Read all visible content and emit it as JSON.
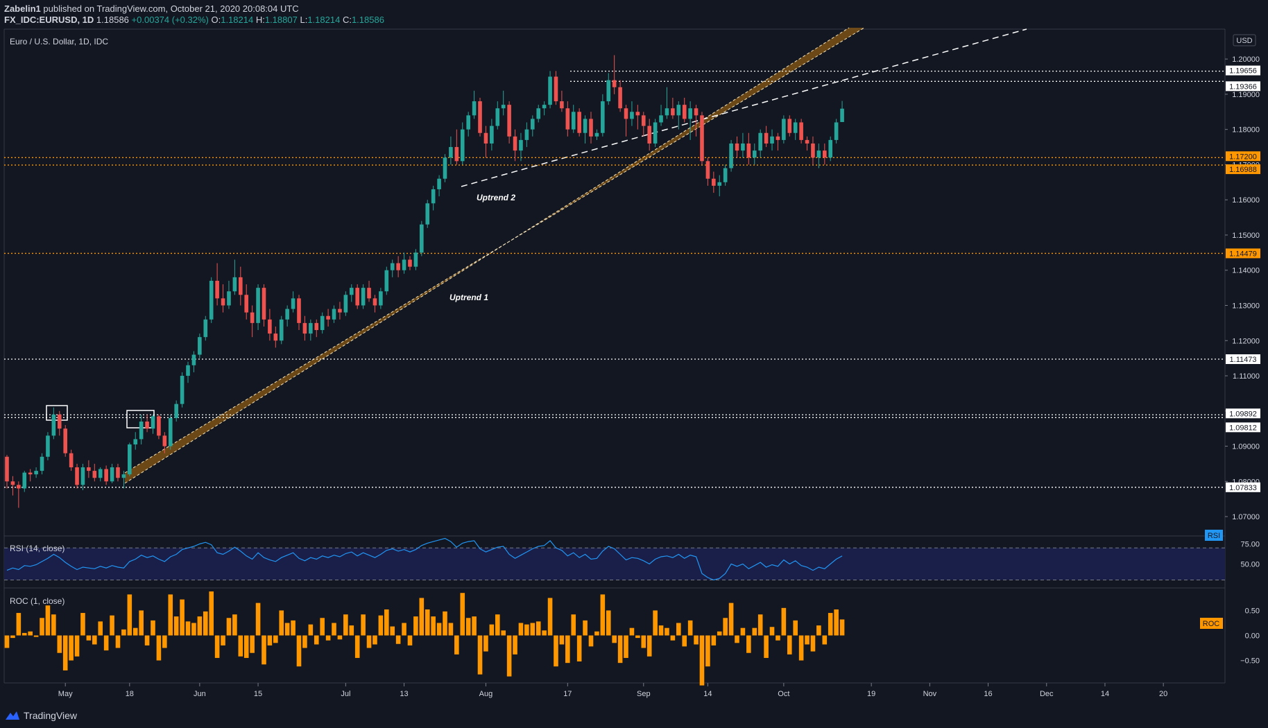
{
  "header": {
    "publisher": "Zabelin1",
    "published_text": "published on TradingView.com, October 21, 2020 20:08:04 UTC",
    "symbol": "FX_IDC:EURUSD, 1D",
    "last": "1.18586",
    "change": "+0.00374 (+0.32%)",
    "o_label": "O:",
    "o": "1.18214",
    "h_label": "H:",
    "h": "1.18807",
    "l_label": "L:",
    "l": "1.18214",
    "c_label": "C:",
    "c": "1.18586"
  },
  "logo_text": "TradingView",
  "colors": {
    "background": "#131722",
    "up": "#26a69a",
    "down": "#ef5350",
    "orange": "#ff9800",
    "rsi_line": "#2196f3",
    "rsi_band": "#1a1f4a",
    "channel": "#8a5a12"
  },
  "chart_data": [
    {
      "type": "candlestick",
      "title": "Euro / U.S. Dollar, 1D, IDC",
      "currency": "USD",
      "ylim": [
        1.0645,
        1.2085
      ],
      "y_ticks": [
        "1.07000",
        "1.08000",
        "1.09000",
        "1.10000",
        "1.11000",
        "1.12000",
        "1.13000",
        "1.14000",
        "1.15000",
        "1.16000",
        "1.17000",
        "1.18000",
        "1.19000",
        "1.20000"
      ],
      "x_ticks": [
        "May",
        "18",
        "Jun",
        "15",
        "Jul",
        "13",
        "Aug",
        "17",
        "Sep",
        "14",
        "Oct",
        "19",
        "Nov",
        "16",
        "Dec",
        "14",
        "20"
      ],
      "ohlc": [
        [
          1.087,
          1.0875,
          1.078,
          1.08
        ],
        [
          1.08,
          1.0815,
          1.076,
          1.079
        ],
        [
          1.079,
          1.08,
          1.0725,
          1.078
        ],
        [
          1.078,
          1.083,
          1.077,
          1.0825
        ],
        [
          1.0825,
          1.0835,
          1.08,
          1.082
        ],
        [
          1.082,
          1.084,
          1.081,
          1.083
        ],
        [
          1.083,
          1.088,
          1.082,
          1.087
        ],
        [
          1.087,
          1.094,
          1.086,
          1.093
        ],
        [
          1.093,
          1.101,
          1.092,
          1.099
        ],
        [
          1.099,
          1.1,
          1.093,
          1.095
        ],
        [
          1.095,
          1.096,
          1.087,
          1.088
        ],
        [
          1.088,
          1.089,
          1.083,
          1.084
        ],
        [
          1.084,
          1.085,
          1.078,
          1.079
        ],
        [
          1.079,
          1.085,
          1.0775,
          1.084
        ],
        [
          1.084,
          1.086,
          1.081,
          1.083
        ],
        [
          1.083,
          1.085,
          1.08,
          1.081
        ],
        [
          1.081,
          1.084,
          1.08,
          1.0835
        ],
        [
          1.0835,
          1.0845,
          1.079,
          1.08
        ],
        [
          1.08,
          1.085,
          1.0795,
          1.084
        ],
        [
          1.084,
          1.085,
          1.08,
          1.081
        ],
        [
          1.081,
          1.083,
          1.078,
          1.082
        ],
        [
          1.082,
          1.091,
          1.0815,
          1.0905
        ],
        [
          1.0905,
          1.094,
          1.089,
          1.092
        ],
        [
          1.092,
          1.099,
          1.0905,
          1.097
        ],
        [
          1.097,
          1.099,
          1.094,
          1.095
        ],
        [
          1.095,
          1.099,
          1.0935,
          1.0985
        ],
        [
          1.0985,
          1.099,
          1.092,
          1.093
        ],
        [
          1.093,
          1.094,
          1.088,
          1.09
        ],
        [
          1.09,
          1.099,
          1.089,
          1.098
        ],
        [
          1.098,
          1.103,
          1.097,
          1.102
        ],
        [
          1.102,
          1.111,
          1.101,
          1.11
        ],
        [
          1.11,
          1.114,
          1.108,
          1.113
        ],
        [
          1.113,
          1.117,
          1.111,
          1.116
        ],
        [
          1.116,
          1.122,
          1.115,
          1.121
        ],
        [
          1.121,
          1.127,
          1.12,
          1.126
        ],
        [
          1.126,
          1.138,
          1.125,
          1.137
        ],
        [
          1.137,
          1.142,
          1.13,
          1.132
        ],
        [
          1.132,
          1.136,
          1.128,
          1.13
        ],
        [
          1.13,
          1.137,
          1.129,
          1.134
        ],
        [
          1.134,
          1.143,
          1.133,
          1.138
        ],
        [
          1.138,
          1.141,
          1.13,
          1.133
        ],
        [
          1.133,
          1.136,
          1.126,
          1.128
        ],
        [
          1.128,
          1.13,
          1.121,
          1.125
        ],
        [
          1.125,
          1.136,
          1.123,
          1.135
        ],
        [
          1.135,
          1.136,
          1.124,
          1.126
        ],
        [
          1.126,
          1.129,
          1.12,
          1.122
        ],
        [
          1.122,
          1.124,
          1.118,
          1.12
        ],
        [
          1.12,
          1.127,
          1.119,
          1.126
        ],
        [
          1.126,
          1.13,
          1.124,
          1.129
        ],
        [
          1.129,
          1.134,
          1.128,
          1.132
        ],
        [
          1.132,
          1.133,
          1.123,
          1.125
        ],
        [
          1.125,
          1.127,
          1.12,
          1.122
        ],
        [
          1.122,
          1.126,
          1.12,
          1.125
        ],
        [
          1.125,
          1.126,
          1.121,
          1.123
        ],
        [
          1.123,
          1.128,
          1.122,
          1.127
        ],
        [
          1.127,
          1.129,
          1.124,
          1.126
        ],
        [
          1.126,
          1.13,
          1.125,
          1.129
        ],
        [
          1.129,
          1.131,
          1.126,
          1.128
        ],
        [
          1.128,
          1.134,
          1.127,
          1.133
        ],
        [
          1.133,
          1.136,
          1.131,
          1.135
        ],
        [
          1.135,
          1.136,
          1.129,
          1.13
        ],
        [
          1.13,
          1.136,
          1.129,
          1.135
        ],
        [
          1.135,
          1.137,
          1.131,
          1.132
        ],
        [
          1.132,
          1.133,
          1.128,
          1.13
        ],
        [
          1.13,
          1.135,
          1.129,
          1.134
        ],
        [
          1.134,
          1.141,
          1.133,
          1.14
        ],
        [
          1.14,
          1.143,
          1.138,
          1.142
        ],
        [
          1.142,
          1.144,
          1.138,
          1.14
        ],
        [
          1.14,
          1.145,
          1.139,
          1.143
        ],
        [
          1.143,
          1.144,
          1.14,
          1.141
        ],
        [
          1.141,
          1.146,
          1.14,
          1.145
        ],
        [
          1.145,
          1.154,
          1.144,
          1.153
        ],
        [
          1.153,
          1.16,
          1.152,
          1.159
        ],
        [
          1.159,
          1.164,
          1.157,
          1.163
        ],
        [
          1.163,
          1.167,
          1.161,
          1.166
        ],
        [
          1.166,
          1.173,
          1.165,
          1.172
        ],
        [
          1.172,
          1.178,
          1.17,
          1.175
        ],
        [
          1.175,
          1.18,
          1.17,
          1.171
        ],
        [
          1.171,
          1.182,
          1.17,
          1.18
        ],
        [
          1.18,
          1.185,
          1.178,
          1.184
        ],
        [
          1.184,
          1.191,
          1.183,
          1.188
        ],
        [
          1.188,
          1.189,
          1.178,
          1.179
        ],
        [
          1.179,
          1.181,
          1.172,
          1.176
        ],
        [
          1.176,
          1.183,
          1.174,
          1.181
        ],
        [
          1.181,
          1.188,
          1.18,
          1.186
        ],
        [
          1.186,
          1.191,
          1.184,
          1.187
        ],
        [
          1.187,
          1.188,
          1.176,
          1.178
        ],
        [
          1.178,
          1.18,
          1.171,
          1.174
        ],
        [
          1.174,
          1.179,
          1.171,
          1.177
        ],
        [
          1.177,
          1.182,
          1.175,
          1.18
        ],
        [
          1.18,
          1.184,
          1.178,
          1.183
        ],
        [
          1.183,
          1.187,
          1.182,
          1.186
        ],
        [
          1.186,
          1.188,
          1.184,
          1.187
        ],
        [
          1.187,
          1.1966,
          1.186,
          1.195
        ],
        [
          1.195,
          1.1966,
          1.187,
          1.188
        ],
        [
          1.188,
          1.191,
          1.185,
          1.186
        ],
        [
          1.186,
          1.188,
          1.178,
          1.18
        ],
        [
          1.18,
          1.187,
          1.179,
          1.185
        ],
        [
          1.185,
          1.186,
          1.178,
          1.179
        ],
        [
          1.179,
          1.184,
          1.176,
          1.183
        ],
        [
          1.183,
          1.185,
          1.176,
          1.178
        ],
        [
          1.178,
          1.18,
          1.177,
          1.179
        ],
        [
          1.179,
          1.19,
          1.178,
          1.188
        ],
        [
          1.188,
          1.196,
          1.187,
          1.194
        ],
        [
          1.194,
          1.2011,
          1.19,
          1.192
        ],
        [
          1.192,
          1.194,
          1.185,
          1.186
        ],
        [
          1.186,
          1.187,
          1.178,
          1.183
        ],
        [
          1.183,
          1.188,
          1.181,
          1.185
        ],
        [
          1.185,
          1.187,
          1.18,
          1.184
        ],
        [
          1.184,
          1.185,
          1.178,
          1.181
        ],
        [
          1.181,
          1.183,
          1.174,
          1.176
        ],
        [
          1.176,
          1.183,
          1.175,
          1.182
        ],
        [
          1.182,
          1.187,
          1.181,
          1.184
        ],
        [
          1.184,
          1.192,
          1.183,
          1.186
        ],
        [
          1.186,
          1.189,
          1.183,
          1.184
        ],
        [
          1.184,
          1.188,
          1.18,
          1.187
        ],
        [
          1.187,
          1.189,
          1.182,
          1.183
        ],
        [
          1.183,
          1.188,
          1.177,
          1.186
        ],
        [
          1.186,
          1.187,
          1.178,
          1.184
        ],
        [
          1.184,
          1.185,
          1.17,
          1.171
        ],
        [
          1.171,
          1.172,
          1.164,
          1.166
        ],
        [
          1.166,
          1.168,
          1.162,
          1.164
        ],
        [
          1.164,
          1.167,
          1.161,
          1.165
        ],
        [
          1.165,
          1.17,
          1.164,
          1.169
        ],
        [
          1.169,
          1.177,
          1.168,
          1.176
        ],
        [
          1.176,
          1.178,
          1.172,
          1.174
        ],
        [
          1.174,
          1.179,
          1.172,
          1.176
        ],
        [
          1.176,
          1.179,
          1.17,
          1.172
        ],
        [
          1.172,
          1.176,
          1.17,
          1.174
        ],
        [
          1.174,
          1.18,
          1.172,
          1.179
        ],
        [
          1.179,
          1.181,
          1.175,
          1.176
        ],
        [
          1.176,
          1.18,
          1.174,
          1.178
        ],
        [
          1.178,
          1.179,
          1.174,
          1.177
        ],
        [
          1.177,
          1.184,
          1.176,
          1.183
        ],
        [
          1.183,
          1.184,
          1.178,
          1.179
        ],
        [
          1.179,
          1.183,
          1.177,
          1.182
        ],
        [
          1.182,
          1.183,
          1.176,
          1.177
        ],
        [
          1.177,
          1.178,
          1.174,
          1.176
        ],
        [
          1.176,
          1.178,
          1.17,
          1.172
        ],
        [
          1.172,
          1.176,
          1.169,
          1.174
        ],
        [
          1.174,
          1.176,
          1.17,
          1.172
        ],
        [
          1.172,
          1.178,
          1.171,
          1.177
        ],
        [
          1.177,
          1.183,
          1.176,
          1.182
        ],
        [
          1.1821,
          1.1881,
          1.1821,
          1.1859
        ]
      ],
      "annotations": {
        "Uptrend 1": "Uptrend 1",
        "Uptrend 2": "Uptrend 2"
      },
      "horizontal_levels": [
        {
          "value": 1.19656,
          "label": "1.19656",
          "color": "#ffffff",
          "style": "dotted"
        },
        {
          "value": 1.19366,
          "label": "1.19366",
          "color": "#ffffff",
          "style": "dotted"
        },
        {
          "value": 1.172,
          "label": "1.17200",
          "color": "#ff9800",
          "style": "dotted"
        },
        {
          "value": 1.16988,
          "label": "1.16988",
          "color": "#ff9800",
          "style": "dotted"
        },
        {
          "value": 1.14479,
          "label": "1.14479",
          "color": "#ff9800",
          "style": "dotted"
        },
        {
          "value": 1.11473,
          "label": "1.11473",
          "color": "#ffffff",
          "style": "dotted"
        },
        {
          "value": 1.09892,
          "label": "1.09892",
          "color": "#ffffff",
          "style": "dotted"
        },
        {
          "value": 1.09812,
          "label": "1.09812",
          "color": "#ffffff",
          "style": "dotted"
        },
        {
          "value": 1.07833,
          "label": "1.07833",
          "color": "#ffffff",
          "style": "dotted"
        }
      ]
    },
    {
      "type": "line",
      "title": "RSI (14, close)",
      "tag": "RSI",
      "y_ticks": [
        "75.00",
        "50.00"
      ],
      "bands": [
        70,
        30
      ],
      "ylim": [
        20,
        85
      ],
      "values": [
        42,
        45,
        43,
        48,
        47,
        49,
        53,
        57,
        62,
        58,
        52,
        47,
        43,
        46,
        45,
        44,
        47,
        45,
        48,
        46,
        45,
        53,
        56,
        61,
        58,
        60,
        56,
        53,
        59,
        62,
        68,
        70,
        72,
        75,
        77,
        74,
        64,
        62,
        66,
        71,
        66,
        60,
        56,
        64,
        58,
        55,
        53,
        58,
        61,
        64,
        57,
        54,
        58,
        56,
        60,
        58,
        61,
        59,
        63,
        65,
        60,
        64,
        61,
        58,
        62,
        67,
        69,
        66,
        68,
        65,
        68,
        73,
        76,
        78,
        80,
        82,
        78,
        71,
        76,
        78,
        79,
        69,
        65,
        68,
        71,
        72,
        62,
        57,
        61,
        65,
        69,
        72,
        73,
        79,
        70,
        67,
        60,
        64,
        58,
        62,
        56,
        57,
        66,
        72,
        69,
        62,
        55,
        58,
        57,
        54,
        50,
        56,
        59,
        60,
        58,
        62,
        57,
        61,
        59,
        38,
        33,
        30,
        32,
        38,
        50,
        47,
        50,
        44,
        48,
        52,
        46,
        49,
        47,
        55,
        50,
        54,
        48,
        46,
        42,
        46,
        44,
        50,
        56,
        60
      ]
    },
    {
      "type": "bar",
      "title": "ROC (1, close)",
      "tag": "ROC",
      "y_ticks": [
        "0.50",
        "0.00",
        "−0.50"
      ],
      "ylim": [
        -0.95,
        0.95
      ],
      "values": [
        -0.25,
        -0.05,
        0.45,
        0.05,
        0.08,
        -0.03,
        0.35,
        0.6,
        0.42,
        -0.35,
        -0.7,
        -0.5,
        -0.42,
        0.45,
        -0.1,
        -0.18,
        0.28,
        -0.3,
        0.4,
        -0.25,
        0.12,
        0.82,
        0.15,
        0.5,
        -0.2,
        0.3,
        -0.5,
        -0.25,
        0.82,
        0.38,
        0.72,
        0.28,
        0.25,
        0.38,
        0.48,
        0.88,
        -0.45,
        -0.2,
        0.35,
        0.42,
        -0.42,
        -0.45,
        -0.35,
        0.65,
        -0.58,
        -0.2,
        -0.15,
        0.5,
        0.25,
        0.3,
        -0.62,
        -0.25,
        0.22,
        -0.18,
        0.35,
        -0.1,
        0.25,
        -0.08,
        0.42,
        0.2,
        -0.45,
        0.42,
        -0.25,
        -0.18,
        0.4,
        0.52,
        0.18,
        -0.17,
        0.25,
        -0.2,
        0.38,
        0.75,
        0.52,
        0.38,
        0.25,
        0.48,
        0.25,
        -0.38,
        0.85,
        0.35,
        0.38,
        -0.78,
        -0.32,
        0.22,
        0.42,
        0.1,
        -0.82,
        -0.38,
        0.25,
        0.22,
        0.25,
        0.28,
        0.1,
        0.75,
        -0.62,
        -0.18,
        -0.55,
        0.42,
        -0.52,
        0.3,
        -0.22,
        0.08,
        0.82,
        0.5,
        -0.15,
        -0.55,
        -0.45,
        0.15,
        -0.05,
        -0.25,
        -0.42,
        0.5,
        0.2,
        0.15,
        -0.1,
        0.25,
        -0.22,
        0.3,
        -0.18,
        -1.0,
        -0.62,
        -0.2,
        0.08,
        0.35,
        0.65,
        -0.15,
        0.15,
        -0.35,
        0.15,
        0.42,
        -0.45,
        0.17,
        -0.1,
        0.55,
        -0.38,
        0.3,
        -0.5,
        -0.18,
        -0.32,
        0.2,
        -0.18,
        0.45,
        0.52,
        0.32
      ]
    }
  ]
}
